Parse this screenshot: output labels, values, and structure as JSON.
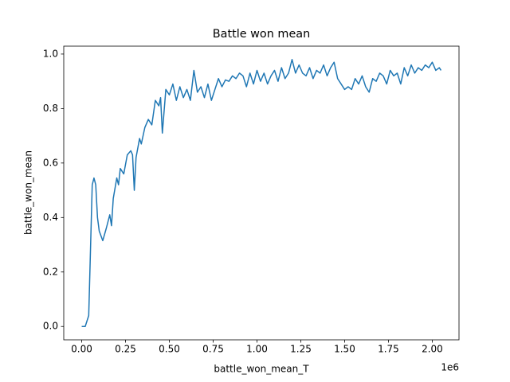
{
  "chart_data": {
    "type": "line",
    "title": "Battle won mean",
    "x_label": "battle_won_mean_T",
    "y_label": "battle_won_mean",
    "x_offset_label": "1e6",
    "x": [
      0,
      20000,
      40000,
      60000,
      70000,
      80000,
      90000,
      100000,
      120000,
      140000,
      160000,
      170000,
      180000,
      200000,
      210000,
      220000,
      240000,
      260000,
      280000,
      290000,
      300000,
      310000,
      330000,
      340000,
      360000,
      380000,
      400000,
      420000,
      440000,
      450000,
      460000,
      480000,
      500000,
      520000,
      540000,
      560000,
      580000,
      600000,
      620000,
      640000,
      660000,
      680000,
      700000,
      720000,
      740000,
      760000,
      780000,
      800000,
      820000,
      840000,
      860000,
      880000,
      900000,
      920000,
      940000,
      960000,
      980000,
      1000000,
      1020000,
      1040000,
      1060000,
      1080000,
      1100000,
      1120000,
      1140000,
      1160000,
      1180000,
      1200000,
      1220000,
      1240000,
      1260000,
      1280000,
      1300000,
      1320000,
      1340000,
      1360000,
      1380000,
      1400000,
      1420000,
      1440000,
      1460000,
      1480000,
      1500000,
      1520000,
      1540000,
      1560000,
      1580000,
      1600000,
      1620000,
      1640000,
      1660000,
      1680000,
      1700000,
      1720000,
      1740000,
      1760000,
      1780000,
      1800000,
      1820000,
      1840000,
      1860000,
      1880000,
      1900000,
      1920000,
      1940000,
      1960000,
      1980000,
      2000000,
      2020000,
      2040000,
      2050000
    ],
    "series": [
      {
        "name": "battle_won_mean",
        "color": "#1f77b4",
        "values": [
          0,
          0,
          0.04,
          0.52,
          0.545,
          0.52,
          0.4,
          0.35,
          0.315,
          0.36,
          0.41,
          0.37,
          0.47,
          0.545,
          0.52,
          0.58,
          0.56,
          0.63,
          0.645,
          0.63,
          0.5,
          0.62,
          0.69,
          0.67,
          0.73,
          0.76,
          0.74,
          0.83,
          0.81,
          0.84,
          0.71,
          0.87,
          0.85,
          0.89,
          0.83,
          0.88,
          0.84,
          0.87,
          0.83,
          0.94,
          0.86,
          0.88,
          0.84,
          0.89,
          0.83,
          0.87,
          0.91,
          0.88,
          0.905,
          0.9,
          0.92,
          0.91,
          0.93,
          0.92,
          0.88,
          0.93,
          0.89,
          0.94,
          0.9,
          0.93,
          0.89,
          0.92,
          0.94,
          0.9,
          0.95,
          0.91,
          0.93,
          0.98,
          0.93,
          0.96,
          0.93,
          0.92,
          0.95,
          0.91,
          0.94,
          0.93,
          0.96,
          0.92,
          0.95,
          0.97,
          0.91,
          0.89,
          0.87,
          0.88,
          0.87,
          0.91,
          0.89,
          0.92,
          0.88,
          0.86,
          0.91,
          0.9,
          0.93,
          0.92,
          0.89,
          0.94,
          0.92,
          0.93,
          0.89,
          0.95,
          0.92,
          0.96,
          0.93,
          0.95,
          0.94,
          0.96,
          0.95,
          0.97,
          0.94,
          0.95,
          0.94
        ]
      }
    ],
    "xlim": [
      -102500,
      2152500
    ],
    "xticks": [
      {
        "value": 0,
        "label": "0.00"
      },
      {
        "value": 250000,
        "label": "0.25"
      },
      {
        "value": 500000,
        "label": "0.50"
      },
      {
        "value": 750000,
        "label": "0.75"
      },
      {
        "value": 1000000,
        "label": "1.00"
      },
      {
        "value": 1250000,
        "label": "1.25"
      },
      {
        "value": 1500000,
        "label": "1.50"
      },
      {
        "value": 1750000,
        "label": "1.75"
      },
      {
        "value": 2000000,
        "label": "2.00"
      }
    ],
    "ylim": [
      -0.049,
      1.029
    ],
    "yticks": [
      {
        "value": 0,
        "label": "0.0"
      },
      0.2,
      0.4,
      0.6,
      0.8,
      {
        "value": 1,
        "label": "1.0"
      }
    ],
    "grid": false
  }
}
